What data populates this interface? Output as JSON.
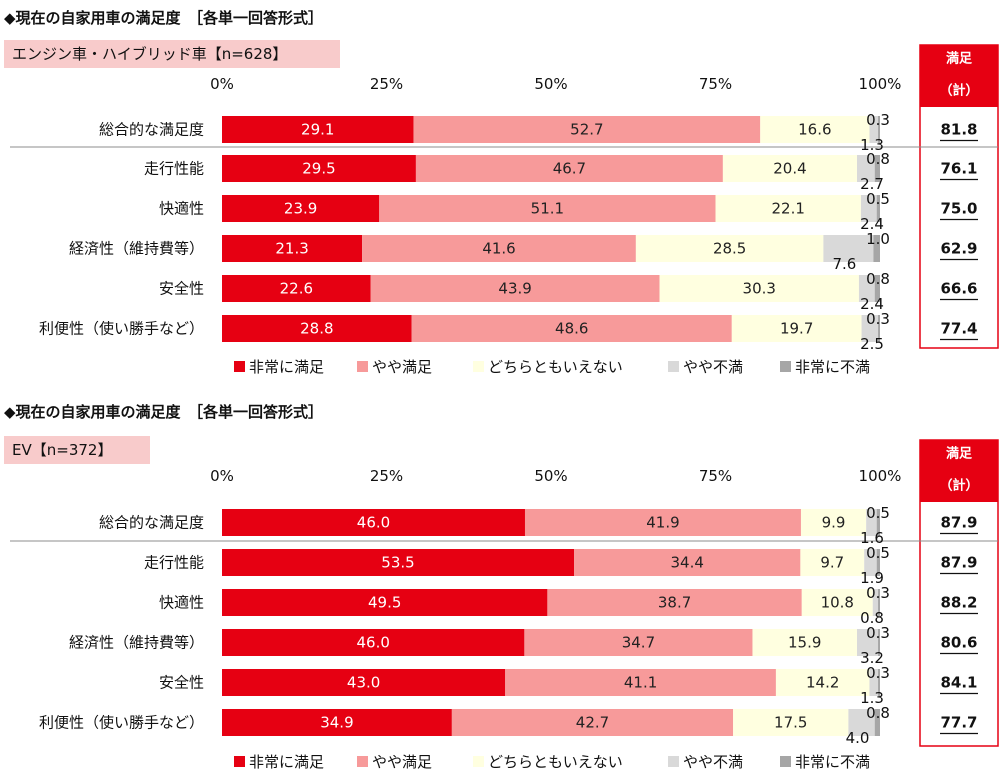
{
  "legend": [
    {
      "label": "非常に満足",
      "color": "#e60012"
    },
    {
      "label": "やや満足",
      "color": "#f79a9a"
    },
    {
      "label": "どちらともいえない",
      "color": "#ffffe0"
    },
    {
      "label": "やや不満",
      "color": "#d9d9d9"
    },
    {
      "label": "非常に不満",
      "color": "#a6a6a6"
    }
  ],
  "total_header_line1": "満足",
  "total_header_line2": "（計）",
  "axis_ticks": [
    "0%",
    "25%",
    "50%",
    "75%",
    "100%"
  ],
  "chart_data": [
    {
      "type": "bar",
      "orientation": "horizontal-stacked-100",
      "title": "◆現在の自家用車の満足度　［各単一回答形式］",
      "subtitle": "エンジン車・ハイブリッド車【n=628】",
      "categories": [
        "総合的な満足度",
        "走行性能",
        "快適性",
        "経済性（維持費等）",
        "安全性",
        "利便性（使い勝手など）"
      ],
      "series": [
        {
          "name": "非常に満足",
          "values": [
            "29.1",
            "29.5",
            "23.9",
            "21.3",
            "22.6",
            "28.8"
          ]
        },
        {
          "name": "やや満足",
          "values": [
            "52.7",
            "46.7",
            "51.1",
            "41.6",
            "43.9",
            "48.6"
          ]
        },
        {
          "name": "どちらともいえない",
          "values": [
            "16.6",
            "20.4",
            "22.1",
            "28.5",
            "30.3",
            "19.7"
          ]
        },
        {
          "name": "やや不満",
          "values": [
            "1.3",
            "2.7",
            "2.4",
            "7.6",
            "2.4",
            "2.5"
          ]
        },
        {
          "name": "非常に不満",
          "values": [
            "0.3",
            "0.8",
            "0.5",
            "1.0",
            "0.8",
            "0.3"
          ]
        }
      ],
      "totals": [
        "81.8",
        "76.1",
        "75.0",
        "62.9",
        "66.6",
        "77.4"
      ],
      "xlim": [
        0,
        100
      ]
    },
    {
      "type": "bar",
      "orientation": "horizontal-stacked-100",
      "title": "◆現在の自家用車の満足度　［各単一回答形式］",
      "subtitle": "EV【n=372】",
      "categories": [
        "総合的な満足度",
        "走行性能",
        "快適性",
        "経済性（維持費等）",
        "安全性",
        "利便性（使い勝手など）"
      ],
      "series": [
        {
          "name": "非常に満足",
          "values": [
            "46.0",
            "53.5",
            "49.5",
            "46.0",
            "43.0",
            "34.9"
          ]
        },
        {
          "name": "やや満足",
          "values": [
            "41.9",
            "34.4",
            "38.7",
            "34.7",
            "41.1",
            "42.7"
          ]
        },
        {
          "name": "どちらともいえない",
          "values": [
            "9.9",
            "9.7",
            "10.8",
            "15.9",
            "14.2",
            "17.5"
          ]
        },
        {
          "name": "やや不満",
          "values": [
            "1.6",
            "1.9",
            "0.8",
            "3.2",
            "1.3",
            "4.0"
          ]
        },
        {
          "name": "非常に不満",
          "values": [
            "0.5",
            "0.5",
            "0.3",
            "0.3",
            "0.3",
            "0.8"
          ]
        }
      ],
      "totals": [
        "87.9",
        "87.9",
        "88.2",
        "80.6",
        "84.1",
        "77.7"
      ],
      "xlim": [
        0,
        100
      ]
    }
  ]
}
